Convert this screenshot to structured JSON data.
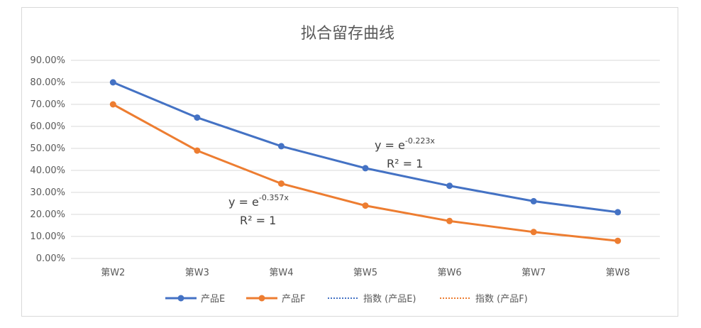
{
  "chart_data": {
    "type": "line",
    "title": "拟合留存曲线",
    "categories": [
      "第W2",
      "第W3",
      "第W4",
      "第W5",
      "第W6",
      "第W7",
      "第W8"
    ],
    "ylim": [
      0,
      0.9
    ],
    "yticks": [
      "0.00%",
      "10.00%",
      "20.00%",
      "30.00%",
      "40.00%",
      "50.00%",
      "60.00%",
      "70.00%",
      "80.00%",
      "90.00%"
    ],
    "grid": true,
    "legend_position": "bottom",
    "series": [
      {
        "name": "产品E",
        "color": "#4472c4",
        "values": [
          0.8,
          0.64,
          0.51,
          0.41,
          0.33,
          0.26,
          0.21
        ]
      },
      {
        "name": "产品F",
        "color": "#ed7d31",
        "values": [
          0.7,
          0.49,
          0.34,
          0.24,
          0.17,
          0.12,
          0.08
        ]
      }
    ],
    "trendlines": [
      {
        "name": "指数 (产品E)",
        "color": "#4472c4",
        "equation_base": "y = e",
        "exponent": "-0.223x",
        "r2": "R² = 1"
      },
      {
        "name": "指数 (产品F)",
        "color": "#ed7d31",
        "equation_base": "y = e",
        "exponent": "-0.357x",
        "r2": "R² = 1"
      }
    ]
  }
}
